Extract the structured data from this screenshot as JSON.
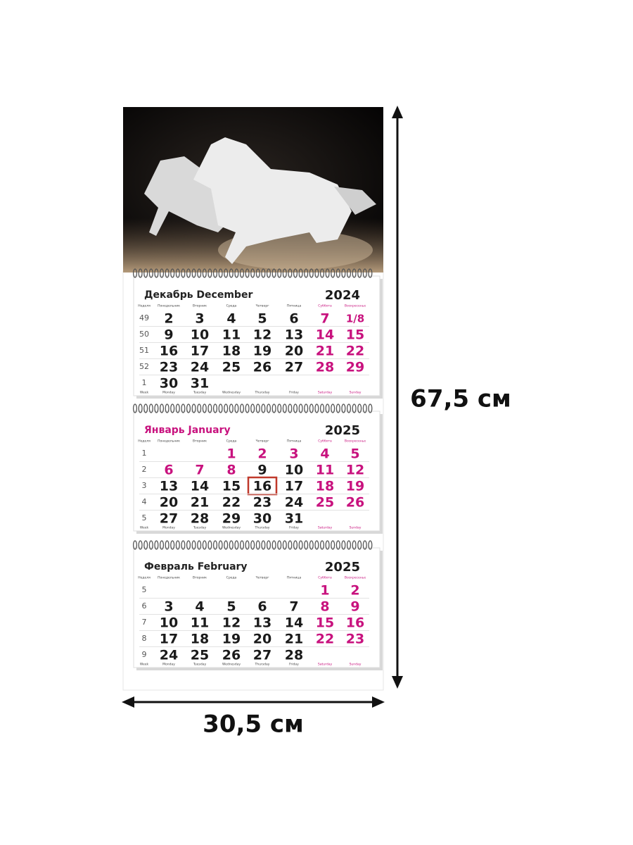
{
  "dimensions": {
    "height": "67,5 см",
    "width": "30,5 см"
  },
  "headers_ru": [
    "Неделя",
    "Понедельник",
    "Вторник",
    "Среда",
    "Четверг",
    "Пятница",
    "Суббота",
    "Воскресенье"
  ],
  "headers_en": [
    "Week",
    "Monday",
    "Tuesday",
    "Wednesday",
    "Thursday",
    "Friday",
    "Saturday",
    "Sunday"
  ],
  "months": [
    {
      "title": "Декабрь December",
      "year": "2024",
      "title_color": "#222222",
      "holidays": [],
      "marked_day": null,
      "weeks": [
        {
          "number": 49,
          "days": [
            2,
            3,
            4,
            5,
            6,
            7,
            "1/8"
          ]
        },
        {
          "number": 50,
          "days": [
            9,
            10,
            11,
            12,
            13,
            14,
            15
          ]
        },
        {
          "number": 51,
          "days": [
            16,
            17,
            18,
            19,
            20,
            21,
            22
          ]
        },
        {
          "number": 52,
          "days": [
            23,
            24,
            25,
            26,
            27,
            28,
            29
          ]
        },
        {
          "number": 1,
          "days": [
            30,
            31,
            null,
            null,
            null,
            null,
            null
          ]
        }
      ]
    },
    {
      "title": "Январь January",
      "year": "2025",
      "title_color": "#c8127e",
      "holidays": [
        1,
        2,
        3,
        6,
        7,
        8
      ],
      "marked_day": 16,
      "weeks": [
        {
          "number": 1,
          "days": [
            null,
            null,
            1,
            2,
            3,
            4,
            5
          ]
        },
        {
          "number": 2,
          "days": [
            6,
            7,
            8,
            9,
            10,
            11,
            12
          ]
        },
        {
          "number": 3,
          "days": [
            13,
            14,
            15,
            16,
            17,
            18,
            19
          ]
        },
        {
          "number": 4,
          "days": [
            20,
            21,
            22,
            23,
            24,
            25,
            26
          ]
        },
        {
          "number": 5,
          "days": [
            27,
            28,
            29,
            30,
            31,
            null,
            null
          ]
        }
      ]
    },
    {
      "title": "Февраль February",
      "year": "2025",
      "title_color": "#222222",
      "holidays": [],
      "marked_day": null,
      "weeks": [
        {
          "number": 5,
          "days": [
            null,
            null,
            null,
            null,
            null,
            1,
            2
          ]
        },
        {
          "number": 6,
          "days": [
            3,
            4,
            5,
            6,
            7,
            8,
            9
          ]
        },
        {
          "number": 7,
          "days": [
            10,
            11,
            12,
            13,
            14,
            15,
            16
          ]
        },
        {
          "number": 8,
          "days": [
            17,
            18,
            19,
            20,
            21,
            22,
            23
          ]
        },
        {
          "number": 9,
          "days": [
            24,
            25,
            26,
            27,
            28,
            null,
            null
          ]
        }
      ]
    }
  ]
}
